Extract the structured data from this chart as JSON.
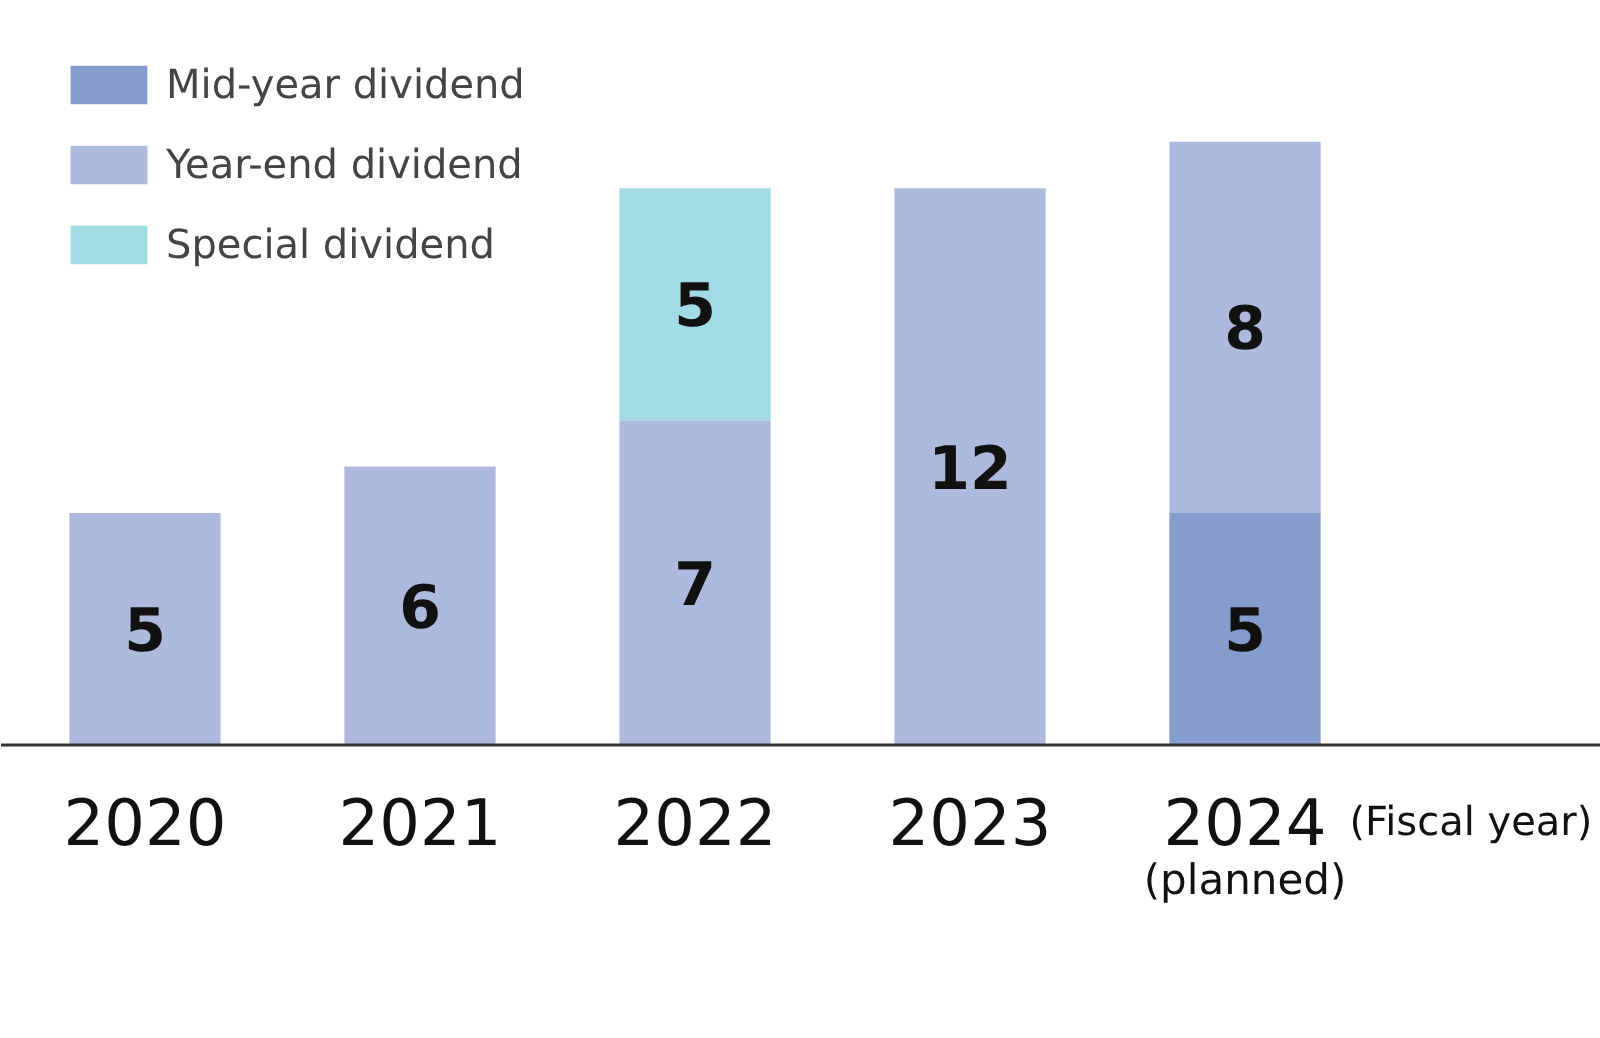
{
  "chart_data": {
    "type": "bar",
    "stacked": true,
    "data_labels": true,
    "legend": "top left",
    "grid": false,
    "categories": [
      "2020",
      "2021",
      "2022",
      "2023",
      "2024\n(planned)"
    ],
    "xlabel": "(Fiscal year)",
    "series": [
      {
        "name": "Mid-year dividend",
        "color": "#849dcc",
        "values": [
          null,
          null,
          null,
          null,
          5
        ]
      },
      {
        "name": "Year-end dividend",
        "color": "#adbadd",
        "values": [
          5,
          6,
          7,
          12,
          8
        ]
      },
      {
        "name": "Special dividend",
        "color": "#a3dbe5",
        "values": [
          null,
          null,
          5,
          null,
          null
        ]
      }
    ]
  }
}
